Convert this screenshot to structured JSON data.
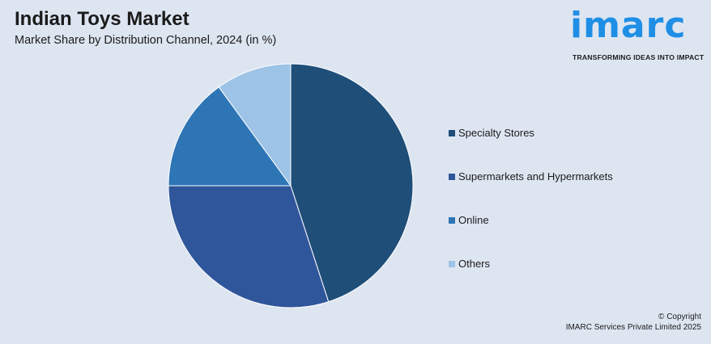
{
  "title": "Indian Toys Market",
  "subtitle": "Market Share by Distribution Channel, 2024 (in %)",
  "logo": {
    "word": "imarc",
    "tagline": "TRANSFORMING IDEAS INTO IMPACT"
  },
  "copyright": {
    "line1": "© Copyright",
    "line2": "IMARC Services Private Limited 2025"
  },
  "chart_data": {
    "type": "pie",
    "categories": [
      "Specialty Stores",
      "Supermarkets and Hypermarkets",
      "Online",
      "Others"
    ],
    "values": [
      45,
      30,
      15,
      10
    ],
    "colors": [
      "#1f4e79",
      "#2f569b",
      "#2e75b6",
      "#9dc3e6"
    ],
    "legend_position": "right",
    "start": "top, clockwise"
  }
}
